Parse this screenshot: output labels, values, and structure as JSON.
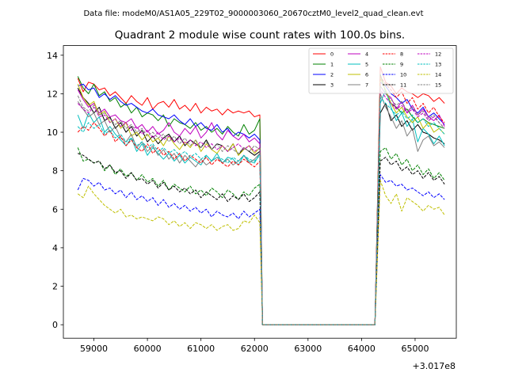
{
  "chart_data": {
    "type": "line",
    "suptitle": "Data file: modeM0/AS1A05_229T02_9000003060_20670cztM0_level2_quad_clean.evt",
    "title": "Quadrant 2 module wise count rates with 100.0s bins.",
    "xlabel": "",
    "ylabel": "",
    "x_offset_label": "+3.017e8",
    "xlim": [
      58430,
      65770
    ],
    "ylim": [
      -0.7,
      14.5
    ],
    "xticks": [
      59000,
      60000,
      61000,
      62000,
      63000,
      64000,
      65000
    ],
    "xtick_labels": [
      "59000",
      "60000",
      "61000",
      "62000",
      "63000",
      "64000",
      "65000"
    ],
    "yticks": [
      0,
      2,
      4,
      6,
      8,
      10,
      12,
      14
    ],
    "ytick_labels": [
      "0",
      "2",
      "4",
      "6",
      "8",
      "10",
      "12",
      "14"
    ],
    "legend_position": "top-right",
    "gap": {
      "start": 62150,
      "end": 64250
    },
    "segments": [
      {
        "x_start": 58700,
        "x_end": 62050,
        "step": 100
      },
      {
        "x_start": 64350,
        "x_end": 65550,
        "step": 100
      }
    ],
    "series": [
      {
        "name": "0",
        "color": "#ff0000",
        "style": "solid",
        "seg1": [
          12.8,
          12.1,
          12.6,
          12.5,
          12.2,
          12.3,
          11.9,
          12.1,
          11.8,
          11.5,
          11.9,
          11.6,
          11.4,
          11.8,
          11.2,
          11.5,
          11.6,
          11.3,
          11.7,
          11.2,
          11.4,
          11.1,
          11.5,
          11.0,
          11.3,
          11.1,
          11.2,
          10.9,
          11.2,
          11.0,
          11.1,
          11.0,
          11.1,
          10.8,
          10.9
        ],
        "seg2": [
          13.4,
          12.6,
          12.4,
          12.0,
          12.3,
          12.1,
          12.0,
          11.8,
          12.0,
          11.9,
          11.6,
          11.8,
          11.5
        ]
      },
      {
        "name": "1",
        "color": "#008000",
        "style": "solid",
        "seg1": [
          12.9,
          12.3,
          12.0,
          12.5,
          11.9,
          12.1,
          11.6,
          11.8,
          11.3,
          11.5,
          11.0,
          11.3,
          10.8,
          11.0,
          10.9,
          10.6,
          10.9,
          10.3,
          10.7,
          10.5,
          10.4,
          10.2,
          10.5,
          10.1,
          10.3,
          10.0,
          10.2,
          9.9,
          10.3,
          10.0,
          9.8,
          10.4,
          9.9,
          10.1,
          10.7
        ],
        "seg2": [
          13.0,
          12.1,
          11.5,
          11.3,
          11.0,
          11.2,
          10.8,
          10.5,
          10.7,
          10.5,
          10.4,
          10.3,
          10.2
        ]
      },
      {
        "name": "2",
        "color": "#0000ff",
        "style": "solid",
        "seg1": [
          12.4,
          12.5,
          12.2,
          12.3,
          11.8,
          12.0,
          11.7,
          11.9,
          11.6,
          11.4,
          11.5,
          11.3,
          11.1,
          11.0,
          11.2,
          10.9,
          10.8,
          10.7,
          10.9,
          10.6,
          10.4,
          10.7,
          10.3,
          10.5,
          10.2,
          10.1,
          10.4,
          10.0,
          10.2,
          9.8,
          10.0,
          9.9,
          9.7,
          9.9,
          9.6
        ],
        "seg2": [
          12.6,
          12.4,
          12.0,
          11.8,
          11.5,
          11.7,
          11.2,
          11.0,
          11.3,
          10.8,
          11.0,
          10.7,
          10.4
        ]
      },
      {
        "name": "3",
        "color": "#000000",
        "style": "solid",
        "seg1": [
          12.3,
          11.8,
          11.5,
          11.0,
          11.3,
          10.6,
          10.8,
          10.2,
          10.5,
          10.0,
          10.3,
          9.8,
          10.1,
          9.5,
          9.8,
          9.4,
          9.7,
          9.9,
          9.5,
          9.8,
          9.3,
          9.6,
          9.4,
          9.2,
          9.6,
          9.1,
          9.4,
          9.3,
          9.0,
          9.4,
          8.8,
          9.2,
          9.0,
          8.8,
          9.0
        ],
        "seg2": [
          11.0,
          11.5,
          10.6,
          10.9,
          10.3,
          10.6,
          10.1,
          10.4,
          10.0,
          9.9,
          9.7,
          9.6,
          9.4
        ]
      },
      {
        "name": "4",
        "color": "#bf00bf",
        "style": "solid",
        "seg1": [
          12.2,
          11.7,
          11.3,
          11.5,
          11.0,
          11.2,
          10.8,
          10.9,
          10.6,
          10.5,
          10.7,
          10.2,
          10.4,
          10.0,
          10.3,
          9.9,
          10.1,
          10.5,
          10.0,
          9.8,
          10.2,
          9.9,
          10.3,
          9.7,
          10.0,
          10.5,
          9.9,
          9.6,
          10.1,
          9.8,
          9.6,
          9.9,
          9.5,
          9.7,
          9.4
        ],
        "seg2": [
          12.4,
          12.0,
          11.8,
          11.2,
          11.6,
          11.0,
          11.4,
          10.9,
          11.2,
          10.8,
          10.6,
          10.9,
          10.3
        ]
      },
      {
        "name": "5",
        "color": "#00bfbf",
        "style": "solid",
        "seg1": [
          10.9,
          10.2,
          11.0,
          10.5,
          10.8,
          10.0,
          10.3,
          9.9,
          9.6,
          9.3,
          9.7,
          9.0,
          9.4,
          8.8,
          9.2,
          8.9,
          8.6,
          8.9,
          8.5,
          8.8,
          8.4,
          8.7,
          8.5,
          8.3,
          8.8,
          8.5,
          8.9,
          8.4,
          8.7,
          8.6,
          8.3,
          8.8,
          8.5,
          8.4,
          8.9
        ],
        "seg2": [
          11.5,
          12.2,
          11.3,
          10.6,
          11.0,
          10.3,
          10.7,
          9.5,
          10.2,
          9.9,
          9.4,
          9.8,
          9.3
        ]
      },
      {
        "name": "6",
        "color": "#bfbf00",
        "style": "solid",
        "seg1": [
          12.5,
          11.8,
          11.4,
          11.6,
          10.9,
          11.1,
          10.5,
          10.7,
          10.2,
          10.5,
          9.8,
          10.0,
          9.6,
          9.9,
          9.5,
          9.7,
          9.3,
          9.8,
          9.4,
          9.1,
          9.5,
          9.2,
          9.6,
          9.0,
          9.4,
          9.1,
          8.9,
          9.3,
          9.0,
          9.4,
          8.8,
          9.1,
          9.3,
          8.9,
          9.2
        ],
        "seg2": [
          12.8,
          12.2,
          11.5,
          11.0,
          11.3,
          10.8,
          10.5,
          10.8,
          10.2,
          10.5,
          10.0,
          10.2,
          9.9
        ]
      },
      {
        "name": "7",
        "color": "#808080",
        "style": "solid",
        "seg1": [
          11.6,
          11.2,
          10.8,
          11.0,
          10.4,
          10.6,
          10.0,
          10.3,
          9.7,
          9.5,
          9.9,
          9.2,
          9.5,
          9.0,
          9.3,
          8.8,
          9.1,
          8.6,
          8.9,
          8.4,
          8.8,
          8.5,
          8.2,
          8.6,
          8.3,
          8.5,
          8.7,
          8.4,
          8.6,
          8.3,
          8.5,
          8.8,
          8.4,
          8.6,
          8.9
        ],
        "seg2": [
          12.0,
          11.3,
          10.8,
          10.2,
          10.6,
          9.8,
          10.2,
          9.0,
          9.6,
          9.8,
          9.3,
          9.5,
          9.2
        ]
      },
      {
        "name": "8",
        "color": "#ff0000",
        "style": "dashed",
        "seg1": [
          10.0,
          10.3,
          10.1,
          10.5,
          10.2,
          9.8,
          10.1,
          9.5,
          9.8,
          9.3,
          9.6,
          9.2,
          9.0,
          9.4,
          8.9,
          9.2,
          8.8,
          9.0,
          8.6,
          8.9,
          8.5,
          8.8,
          8.6,
          8.4,
          8.7,
          8.3,
          8.6,
          8.4,
          8.2,
          8.5,
          8.3,
          8.6,
          8.4,
          8.2,
          8.5
        ],
        "seg2": [
          12.9,
          12.5,
          12.2,
          11.8,
          12.1,
          11.5,
          11.8,
          11.2,
          11.5,
          11.0,
          11.3,
          10.8,
          10.5
        ]
      },
      {
        "name": "9",
        "color": "#008000",
        "style": "dashed",
        "seg1": [
          9.2,
          8.5,
          8.6,
          8.4,
          8.5,
          8.0,
          8.3,
          7.8,
          8.1,
          7.7,
          7.9,
          7.5,
          7.8,
          7.4,
          7.6,
          7.2,
          7.5,
          7.0,
          7.3,
          7.1,
          6.9,
          7.2,
          6.8,
          7.0,
          6.7,
          7.1,
          6.9,
          6.6,
          7.0,
          6.8,
          6.5,
          6.9,
          6.7,
          7.1,
          7.3
        ],
        "seg2": [
          9.0,
          9.2,
          8.6,
          8.9,
          8.3,
          8.6,
          8.0,
          8.3,
          7.8,
          8.1,
          7.6,
          7.9,
          7.5
        ]
      },
      {
        "name": "10",
        "color": "#0000ff",
        "style": "dashed",
        "seg1": [
          7.0,
          7.6,
          7.5,
          7.2,
          7.4,
          7.0,
          7.1,
          6.8,
          7.0,
          6.6,
          6.9,
          6.5,
          6.7,
          6.4,
          6.6,
          6.2,
          6.5,
          6.1,
          6.3,
          6.0,
          6.2,
          5.9,
          6.1,
          5.8,
          6.0,
          5.6,
          5.9,
          5.7,
          5.6,
          5.8,
          5.5,
          5.9,
          5.6,
          5.8,
          6.0
        ],
        "seg2": [
          7.8,
          7.4,
          7.5,
          7.2,
          7.3,
          7.0,
          7.1,
          6.9,
          6.7,
          6.9,
          6.6,
          6.8,
          6.5
        ]
      },
      {
        "name": "11",
        "color": "#000000",
        "style": "dashed",
        "seg1": [
          8.9,
          8.8,
          8.6,
          8.4,
          8.5,
          8.1,
          8.3,
          7.9,
          8.0,
          7.6,
          7.9,
          7.5,
          7.6,
          7.3,
          7.5,
          7.1,
          7.4,
          7.0,
          7.2,
          6.9,
          7.1,
          6.8,
          7.0,
          6.6,
          6.9,
          6.7,
          6.5,
          6.8,
          6.4,
          6.7,
          6.5,
          6.8,
          6.4,
          6.6,
          6.9
        ],
        "seg2": [
          8.5,
          8.7,
          8.3,
          8.5,
          8.0,
          8.2,
          7.8,
          8.0,
          7.6,
          7.9,
          7.5,
          7.7,
          7.3
        ]
      },
      {
        "name": "12",
        "color": "#bf00bf",
        "style": "dashed",
        "seg1": [
          11.5,
          11.2,
          11.0,
          11.3,
          10.8,
          10.9,
          10.5,
          10.7,
          10.3,
          10.5,
          10.1,
          10.3,
          9.9,
          10.1,
          9.7,
          10.0,
          9.6,
          9.8,
          9.5,
          9.7,
          9.4,
          9.6,
          9.3,
          9.5,
          9.2,
          9.4,
          9.1,
          9.3,
          9.0,
          9.2,
          9.4,
          9.1,
          9.3,
          9.0,
          9.2
        ],
        "seg2": [
          12.2,
          11.8,
          11.5,
          11.2,
          11.4,
          11.0,
          11.2,
          10.8,
          11.0,
          10.6,
          10.8,
          10.5,
          10.2
        ]
      },
      {
        "name": "13",
        "color": "#00bfbf",
        "style": "dashed",
        "seg1": [
          10.3,
          10.0,
          10.5,
          10.2,
          10.4,
          9.9,
          10.1,
          9.7,
          9.9,
          9.5,
          9.7,
          9.3,
          9.5,
          9.2,
          9.4,
          9.0,
          9.2,
          8.9,
          9.1,
          8.8,
          9.0,
          8.7,
          8.9,
          8.6,
          8.8,
          8.5,
          8.7,
          8.6,
          8.4,
          8.7,
          8.5,
          8.8,
          8.6,
          8.5,
          8.8
        ],
        "seg2": [
          11.8,
          11.5,
          11.2,
          10.9,
          11.1,
          10.7,
          10.9,
          10.5,
          10.7,
          10.3,
          10.5,
          10.2,
          9.9
        ]
      },
      {
        "name": "14",
        "color": "#bfbf00",
        "style": "dashed",
        "seg1": [
          6.8,
          6.6,
          7.2,
          6.8,
          6.5,
          6.2,
          6.0,
          5.8,
          6.0,
          5.6,
          5.7,
          5.5,
          5.6,
          5.5,
          5.4,
          5.6,
          5.5,
          5.2,
          5.4,
          5.1,
          5.3,
          5.0,
          5.3,
          5.2,
          5.0,
          5.2,
          4.9,
          5.1,
          5.2,
          4.9,
          5.0,
          5.4,
          5.3,
          5.7,
          5.3
        ],
        "seg2": [
          7.5,
          6.7,
          6.3,
          6.8,
          5.9,
          6.6,
          6.4,
          6.2,
          5.9,
          6.2,
          6.0,
          6.1,
          5.7
        ]
      },
      {
        "name": "15",
        "color": "#808080",
        "style": "dashed",
        "seg1": [
          11.9,
          11.3,
          11.1,
          11.4,
          10.9,
          11.0,
          10.7,
          10.4,
          10.6,
          10.2,
          10.4,
          10.0,
          10.2,
          9.8,
          10.0,
          9.7,
          9.9,
          9.5,
          9.8,
          9.4,
          9.7,
          9.3,
          9.6,
          9.2,
          9.5,
          9.1,
          9.4,
          9.0,
          9.3,
          9.1,
          8.9,
          9.2,
          9.0,
          9.3,
          9.1
        ],
        "seg2": [
          12.4,
          12.0,
          11.7,
          11.4,
          11.6,
          11.1,
          11.3,
          10.9,
          11.1,
          10.7,
          10.9,
          10.5,
          10.2
        ]
      }
    ]
  }
}
